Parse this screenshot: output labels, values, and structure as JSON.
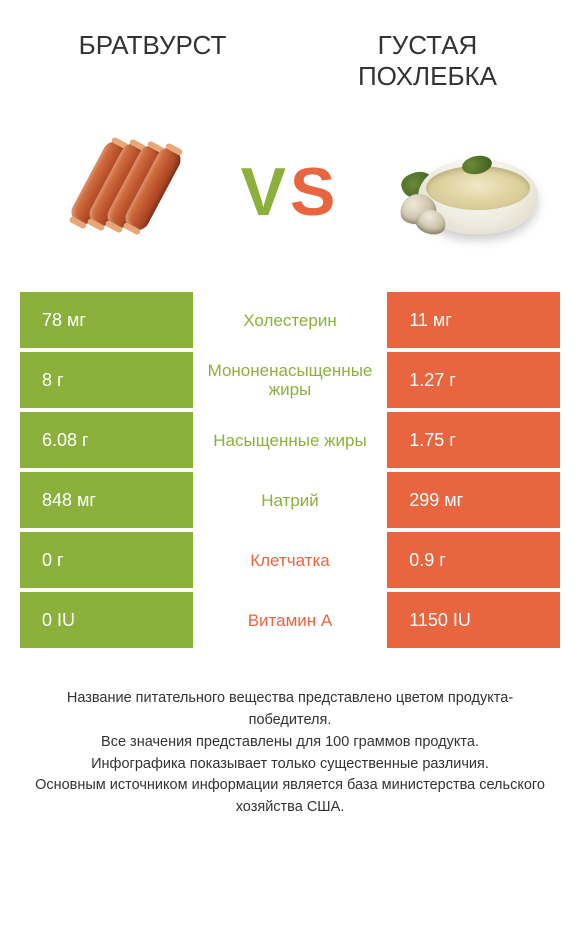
{
  "header": {
    "left": "БРАТВУРСТ",
    "right": "ГУСТАЯ ПОХЛЕБКА"
  },
  "vs": {
    "v": "V",
    "s": "S"
  },
  "colors": {
    "left": "#8bb13c",
    "right": "#e8653f"
  },
  "rows": [
    {
      "left": "78 мг",
      "label": "Холестерин",
      "right": "11 мг",
      "winner": "left"
    },
    {
      "left": "8 г",
      "label": "Мононенасыщенные жиры",
      "right": "1.27 г",
      "winner": "left"
    },
    {
      "left": "6.08 г",
      "label": "Насыщенные жиры",
      "right": "1.75 г",
      "winner": "left"
    },
    {
      "left": "848 мг",
      "label": "Натрий",
      "right": "299 мг",
      "winner": "left"
    },
    {
      "left": "0 г",
      "label": "Клетчатка",
      "right": "0.9 г",
      "winner": "right"
    },
    {
      "left": "0 IU",
      "label": "Витамин A",
      "right": "1150 IU",
      "winner": "right"
    }
  ],
  "footer": {
    "l1": "Название питательного вещества представлено цветом продукта-победителя.",
    "l2": "Все значения представлены для 100 граммов продукта.",
    "l3": "Инфографика показывает только существенные различия.",
    "l4": "Основным источником информации является база министерства сельского хозяйства США."
  }
}
